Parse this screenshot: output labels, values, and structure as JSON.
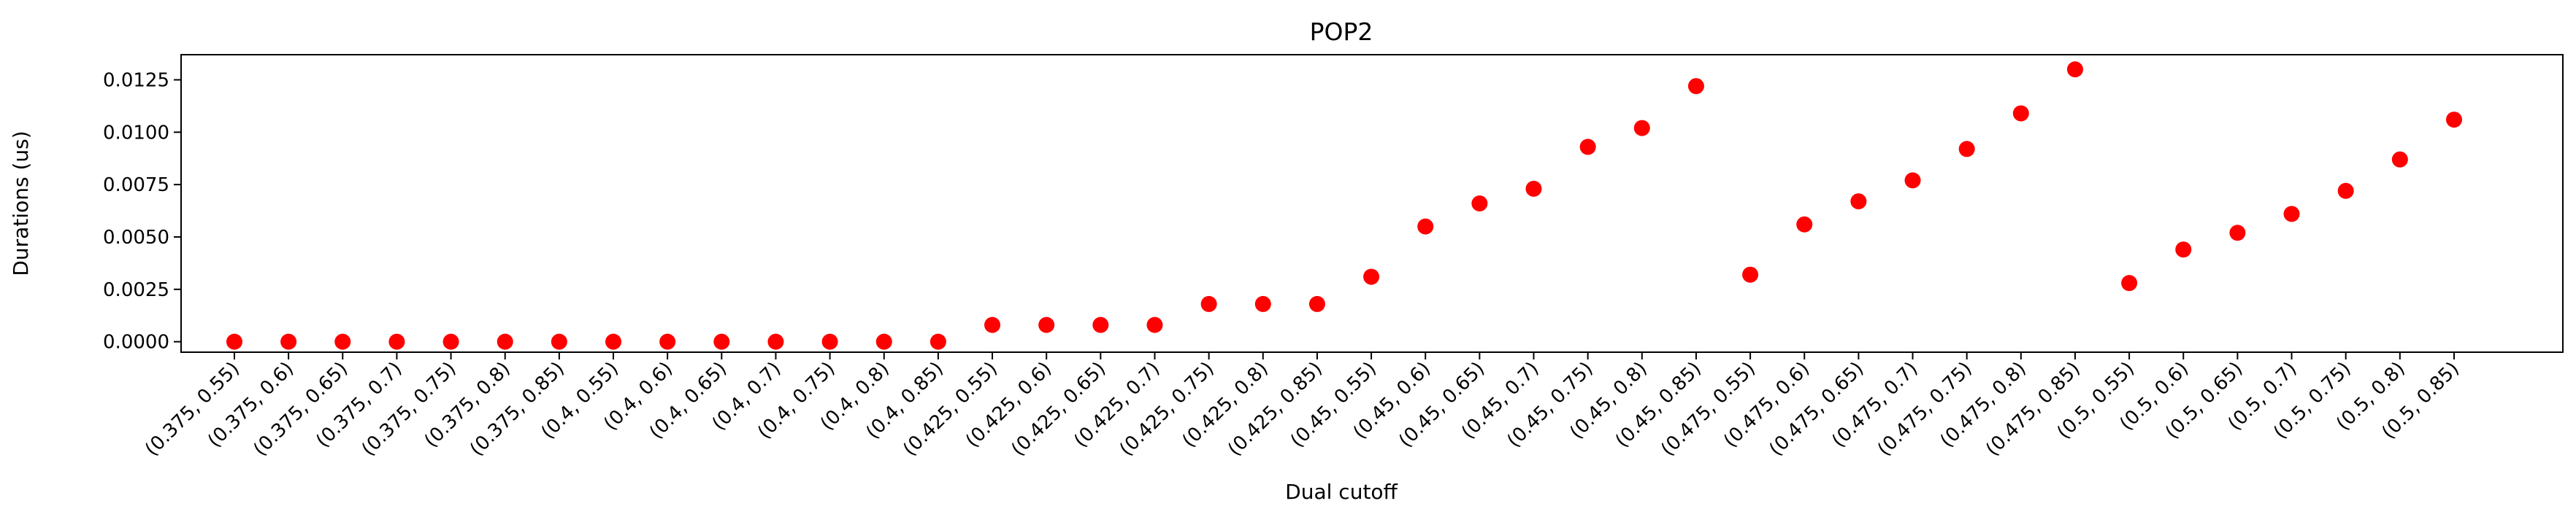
{
  "chart_data": {
    "type": "scatter",
    "title": "POP2",
    "xlabel": "Dual cutoff",
    "ylabel": "Durations (us)",
    "ylim": [
      -0.0005,
      0.0137
    ],
    "yticks": [
      "0.0000",
      "0.0025",
      "0.0050",
      "0.0075",
      "0.0100",
      "0.0125"
    ],
    "ytick_values": [
      0,
      0.0025,
      0.005,
      0.0075,
      0.01,
      0.0125
    ],
    "grid": false,
    "marker_color": "#ff0000",
    "categories": [
      "(0.375, 0.55)",
      "(0.375, 0.6)",
      "(0.375, 0.65)",
      "(0.375, 0.7)",
      "(0.375, 0.75)",
      "(0.375, 0.8)",
      "(0.375, 0.85)",
      "(0.4, 0.55)",
      "(0.4, 0.6)",
      "(0.4, 0.65)",
      "(0.4, 0.7)",
      "(0.4, 0.75)",
      "(0.4, 0.8)",
      "(0.4, 0.85)",
      "(0.425, 0.55)",
      "(0.425, 0.6)",
      "(0.425, 0.65)",
      "(0.425, 0.7)",
      "(0.425, 0.75)",
      "(0.425, 0.8)",
      "(0.425, 0.85)",
      "(0.45, 0.55)",
      "(0.45, 0.6)",
      "(0.45, 0.65)",
      "(0.45, 0.7)",
      "(0.45, 0.75)",
      "(0.45, 0.8)",
      "(0.45, 0.85)",
      "(0.475, 0.55)",
      "(0.475, 0.6)",
      "(0.475, 0.65)",
      "(0.475, 0.7)",
      "(0.475, 0.75)",
      "(0.475, 0.8)",
      "(0.475, 0.85)",
      "(0.5, 0.55)",
      "(0.5, 0.6)",
      "(0.5, 0.65)",
      "(0.5, 0.7)",
      "(0.5, 0.75)",
      "(0.5, 0.8)",
      "(0.5, 0.85)"
    ],
    "values": [
      0,
      0,
      0,
      0,
      0,
      0,
      0,
      0,
      0,
      0,
      0,
      0,
      0,
      0,
      0.0008,
      0.0008,
      0.0008,
      0.0008,
      0.0018,
      0.0018,
      0.0018,
      0.0031,
      0.0055,
      0.0066,
      0.0073,
      0.0093,
      0.0102,
      0.0122,
      0.0032,
      0.0056,
      0.0067,
      0.0077,
      0.0092,
      0.0109,
      0.013,
      0.0028,
      0.0044,
      0.0052,
      0.0061,
      0.0072,
      0.0087,
      0.0106
    ]
  }
}
